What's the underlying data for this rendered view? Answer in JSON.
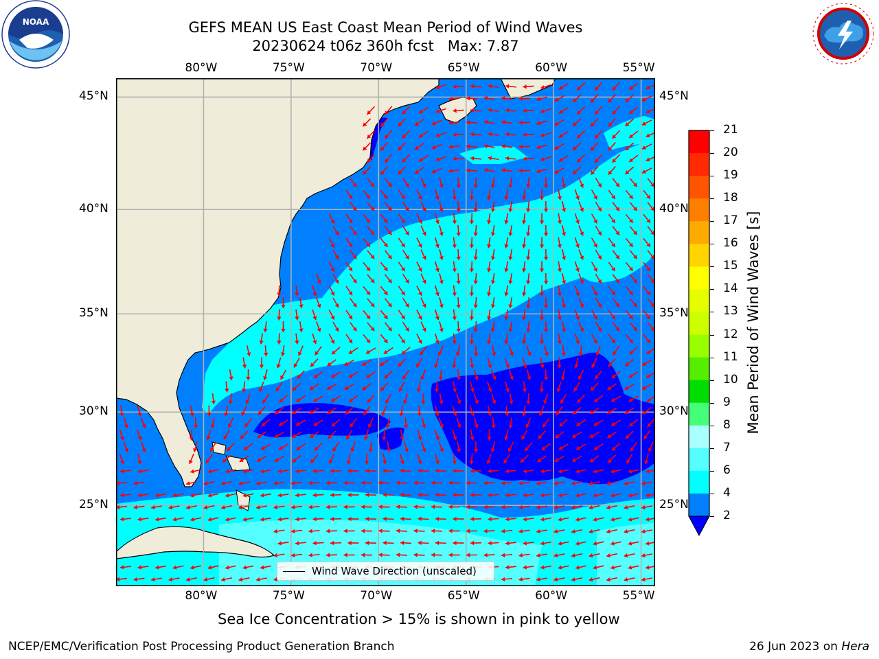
{
  "title": {
    "line1": "GEFS MEAN US East Coast Mean Period of Wind Waves",
    "line2": "20230624 t06z 360h fcst   Max: 7.87"
  },
  "logos": {
    "left": {
      "name": "noaa-logo",
      "text": "NOAA"
    },
    "right": {
      "name": "national-weather-service-logo",
      "text": "NATIONAL WEATHER SERVICE"
    }
  },
  "map": {
    "lon_labels": [
      "80°W",
      "75°W",
      "70°W",
      "65°W",
      "60°W",
      "55°W"
    ],
    "lat_labels": [
      "45°N",
      "40°N",
      "35°N",
      "30°N",
      "25°N"
    ],
    "lon_values": [
      -80,
      -75,
      -70,
      -65,
      -60,
      -55
    ],
    "lat_values": [
      45,
      40,
      35,
      30,
      25
    ],
    "extent": {
      "lon_min": -85,
      "lon_max": -54.2,
      "lat_min": 20.5,
      "lat_max": 45.8
    },
    "colors": {
      "land": "#efedd9",
      "coast": "#000000",
      "grid": "#b0b0b0",
      "arrow": "#ff0000"
    },
    "legend_text": "Wind Wave Direction (unscaled)"
  },
  "colorbar": {
    "label": "Mean Period of Wind Waves [s]",
    "ticks": [
      "21",
      "20",
      "19",
      "18",
      "17",
      "16",
      "15",
      "14",
      "13",
      "12",
      "11",
      "10",
      "9",
      "8",
      "7",
      "6",
      "4",
      "2"
    ],
    "colors": [
      "#ff0000",
      "#ff2a00",
      "#ff5500",
      "#ff8000",
      "#ffaa00",
      "#ffd400",
      "#ffff00",
      "#e5ff00",
      "#ccff00",
      "#99ff00",
      "#55ee00",
      "#00dd00",
      "#44ff77",
      "#aaffff",
      "#55ffff",
      "#00ffff",
      "#0080ff"
    ],
    "under_color": "#0000ff"
  },
  "caption": "Sea Ice Concentration > 15% is shown in pink to yellow",
  "footer": {
    "left": "NCEP/EMC/Verification Post Processing Product Generation Branch",
    "date": "26 Jun 2023 on ",
    "machine": "Hera"
  }
}
